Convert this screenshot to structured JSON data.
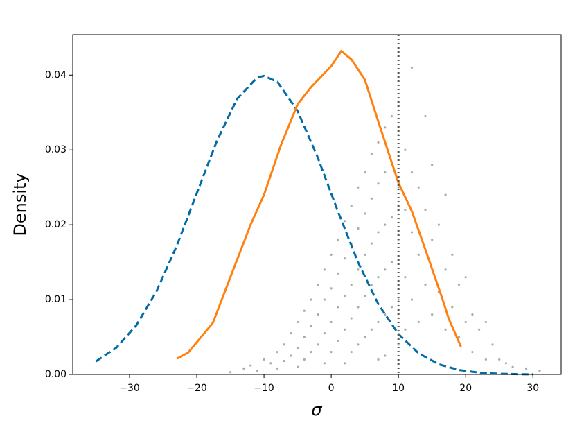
{
  "chart_data": {
    "type": "line",
    "x_label": "σ",
    "y_label": "Density",
    "xlim": [
      -38.45,
      34.2
    ],
    "ylim": [
      0,
      0.0454
    ],
    "xticks": [
      {
        "value": -30,
        "label": "−30"
      },
      {
        "value": -20,
        "label": "−20"
      },
      {
        "value": -10,
        "label": "−10"
      },
      {
        "value": 0,
        "label": "0"
      },
      {
        "value": 10,
        "label": "10"
      },
      {
        "value": 20,
        "label": "20"
      },
      {
        "value": 30,
        "label": "30"
      }
    ],
    "yticks": [
      {
        "value": 0,
        "label": "0.00"
      },
      {
        "value": 0.01,
        "label": "0.01"
      },
      {
        "value": 0.02,
        "label": "0.02"
      },
      {
        "value": 0.03,
        "label": "0.03"
      },
      {
        "value": 0.04,
        "label": "0.04"
      }
    ],
    "vlines": [
      {
        "x": 10,
        "color": "#555555",
        "style": "dotted"
      }
    ],
    "series": [
      {
        "type": "scatter",
        "color": "#aaaaaa",
        "x": [
          -15,
          -13,
          -12,
          -11,
          -10,
          -9,
          -8,
          -8,
          -7,
          -7,
          -6,
          -6,
          -5,
          -5,
          -5,
          -4,
          -4,
          -4,
          -3,
          -3,
          -3,
          -2,
          -2,
          -2,
          -1,
          -1,
          -1,
          -1,
          0,
          0,
          0,
          0,
          1,
          1,
          1,
          1,
          2,
          2,
          2,
          2,
          2,
          3,
          3,
          3,
          3,
          3,
          4,
          4,
          4,
          4,
          4,
          5,
          5,
          5,
          5,
          5,
          6,
          6,
          6,
          6,
          6,
          7,
          7,
          7,
          7,
          7,
          7,
          8,
          8,
          8,
          8,
          8,
          8,
          9,
          9,
          9,
          9,
          9,
          10,
          10,
          10,
          10,
          10,
          11,
          11,
          11,
          11,
          12,
          12,
          12,
          12,
          13,
          13,
          13,
          14,
          14,
          14,
          15,
          15,
          15,
          16,
          16,
          17,
          17,
          17,
          18,
          18,
          19,
          19,
          20,
          20,
          21,
          21,
          22,
          23,
          23,
          24,
          25,
          26,
          27,
          29,
          31
        ],
        "values": [
          0.0003,
          0.0008,
          0.0012,
          0.0005,
          0.002,
          0.0015,
          0.003,
          0.0008,
          0.004,
          0.0018,
          0.0055,
          0.0025,
          0.007,
          0.0035,
          0.001,
          0.0085,
          0.005,
          0.002,
          0.01,
          0.0065,
          0.003,
          0.012,
          0.008,
          0.004,
          0.014,
          0.01,
          0.0055,
          0.0015,
          0.016,
          0.0115,
          0.007,
          0.003,
          0.018,
          0.0135,
          0.009,
          0.0045,
          0.0205,
          0.0155,
          0.0105,
          0.006,
          0.0015,
          0.0225,
          0.0175,
          0.012,
          0.0075,
          0.003,
          0.025,
          0.0195,
          0.014,
          0.009,
          0.004,
          0.027,
          0.0215,
          0.016,
          0.0105,
          0.005,
          0.0295,
          0.0235,
          0.0175,
          0.012,
          0.006,
          0.031,
          0.0255,
          0.019,
          0.013,
          0.007,
          0.002,
          0.033,
          0.027,
          0.02,
          0.014,
          0.008,
          0.0025,
          0.0345,
          0.028,
          0.021,
          0.015,
          0.009,
          0.032,
          0.025,
          0.018,
          0.01,
          0.004,
          0.03,
          0.022,
          0.013,
          0.006,
          0.041,
          0.027,
          0.019,
          0.01,
          0.025,
          0.016,
          0.007,
          0.0345,
          0.022,
          0.012,
          0.028,
          0.018,
          0.008,
          0.02,
          0.011,
          0.024,
          0.014,
          0.006,
          0.016,
          0.009,
          0.012,
          0.005,
          0.013,
          0.007,
          0.008,
          0.003,
          0.006,
          0.007,
          0.002,
          0.004,
          0.002,
          0.0015,
          0.001,
          0.0008,
          0.0005
        ]
      },
      {
        "type": "line",
        "color": "#006ba4",
        "style": "dashed",
        "x": [
          -35,
          -32,
          -29,
          -26,
          -23,
          -20,
          -17,
          -14,
          -11,
          -10,
          -8,
          -5,
          -2,
          1,
          4,
          7,
          10,
          13,
          16,
          19,
          22,
          25,
          28,
          30
        ],
        "values": [
          0.00175,
          0.00355,
          0.00656,
          0.01109,
          0.01714,
          0.0242,
          0.03122,
          0.03682,
          0.03969,
          0.03989,
          0.0391,
          0.0352,
          0.02897,
          0.02178,
          0.01497,
          0.0094,
          0.0054,
          0.00283,
          0.00136,
          0.0006,
          0.00024,
          9e-05,
          3e-05,
          1e-05
        ]
      },
      {
        "type": "line",
        "color": "#ff800e",
        "style": "solid",
        "x": [
          -23,
          -21.3,
          -17.6,
          -15,
          -12,
          -10,
          -7.5,
          -5,
          -3,
          0,
          1.5,
          3,
          5,
          7,
          10,
          12,
          14,
          16.5,
          17.5,
          19.3
        ],
        "values": [
          0.0021,
          0.0029,
          0.0069,
          0.013,
          0.02,
          0.024,
          0.0306,
          0.0361,
          0.0384,
          0.0412,
          0.0432,
          0.0421,
          0.0394,
          0.0338,
          0.0256,
          0.0218,
          0.0167,
          0.0102,
          0.0074,
          0.0037
        ]
      }
    ]
  }
}
